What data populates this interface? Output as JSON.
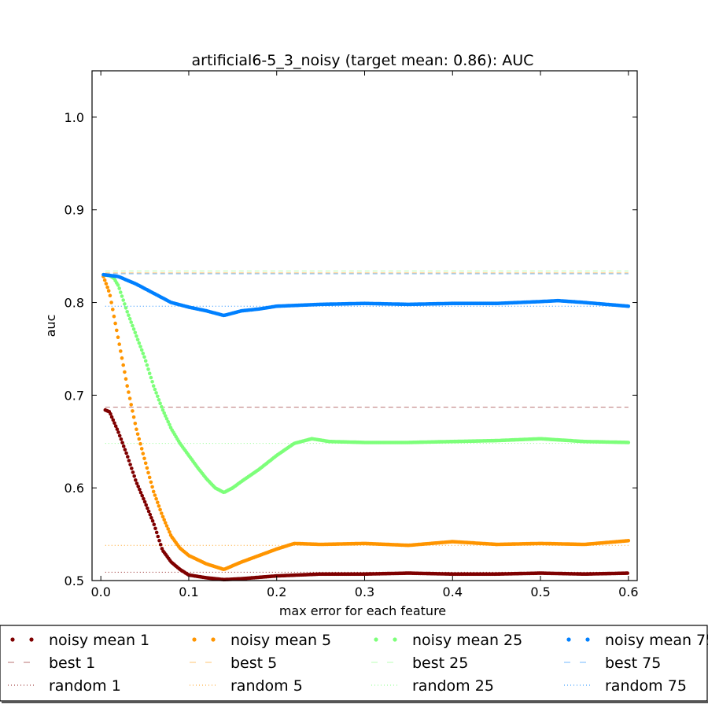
{
  "chart_data": {
    "type": "scatter",
    "title": "artificial6-5_3_noisy (target mean: 0.86): AUC",
    "xlabel": "max error for each feature",
    "ylabel": "auc",
    "xlim": [
      -0.01,
      0.61
    ],
    "ylim": [
      0.5,
      1.05
    ],
    "xticks": [
      0.0,
      0.1,
      0.2,
      0.3,
      0.4,
      0.5,
      0.6
    ],
    "xtick_labels": [
      "0.0",
      "0.1",
      "0.2",
      "0.3",
      "0.4",
      "0.5",
      "0.6"
    ],
    "yticks": [
      0.5,
      0.6,
      0.7,
      0.8,
      0.9,
      1.0
    ],
    "ytick_labels": [
      "0.5",
      "0.6",
      "0.7",
      "0.8",
      "0.9",
      "1.0"
    ],
    "grid": false,
    "legend_position": "below plot, 4 columns",
    "colors": {
      "group1": "#7f0000",
      "group5": "#ff9500",
      "group25": "#7dff7a",
      "group75": "#0080ff"
    },
    "series": [
      {
        "name": "noisy mean 1",
        "style": "dots",
        "color": "#7f0000",
        "x": [
          0.005,
          0.01,
          0.02,
          0.03,
          0.04,
          0.05,
          0.06,
          0.07,
          0.08,
          0.09,
          0.1,
          0.12,
          0.14,
          0.16,
          0.2,
          0.25,
          0.3,
          0.35,
          0.4,
          0.45,
          0.5,
          0.55,
          0.6
        ],
        "y": [
          0.684,
          0.682,
          0.66,
          0.635,
          0.607,
          0.585,
          0.562,
          0.533,
          0.52,
          0.512,
          0.506,
          0.503,
          0.501,
          0.502,
          0.505,
          0.507,
          0.507,
          0.508,
          0.507,
          0.507,
          0.508,
          0.507,
          0.508
        ]
      },
      {
        "name": "best 1",
        "style": "dashed",
        "color": "#7f0000",
        "x": [
          0.005,
          0.6
        ],
        "y": [
          0.687,
          0.687
        ]
      },
      {
        "name": "random 1",
        "style": "dotted",
        "color": "#7f0000",
        "x": [
          0.005,
          0.6
        ],
        "y": [
          0.509,
          0.509
        ]
      },
      {
        "name": "noisy mean 5",
        "style": "dots",
        "color": "#ff9500",
        "x": [
          0.003,
          0.01,
          0.015,
          0.02,
          0.025,
          0.03,
          0.04,
          0.05,
          0.06,
          0.07,
          0.08,
          0.09,
          0.1,
          0.12,
          0.14,
          0.16,
          0.18,
          0.2,
          0.22,
          0.25,
          0.3,
          0.35,
          0.4,
          0.45,
          0.5,
          0.55,
          0.6
        ],
        "y": [
          0.828,
          0.81,
          0.785,
          0.76,
          0.735,
          0.71,
          0.665,
          0.63,
          0.596,
          0.57,
          0.548,
          0.535,
          0.527,
          0.518,
          0.512,
          0.52,
          0.527,
          0.534,
          0.54,
          0.539,
          0.54,
          0.538,
          0.542,
          0.539,
          0.54,
          0.539,
          0.543
        ]
      },
      {
        "name": "best 5",
        "style": "dashed",
        "color": "#ff9500",
        "x": [
          0.005,
          0.6
        ],
        "y": [
          0.832,
          0.832
        ]
      },
      {
        "name": "random 5",
        "style": "dotted",
        "color": "#ff9500",
        "x": [
          0.005,
          0.6
        ],
        "y": [
          0.538,
          0.538
        ]
      },
      {
        "name": "noisy mean 25",
        "style": "dots",
        "color": "#7dff7a",
        "x": [
          0.003,
          0.01,
          0.015,
          0.02,
          0.03,
          0.04,
          0.05,
          0.06,
          0.07,
          0.08,
          0.09,
          0.1,
          0.11,
          0.12,
          0.13,
          0.14,
          0.15,
          0.16,
          0.18,
          0.2,
          0.22,
          0.24,
          0.26,
          0.3,
          0.35,
          0.4,
          0.45,
          0.5,
          0.55,
          0.6
        ],
        "y": [
          0.83,
          0.829,
          0.826,
          0.818,
          0.79,
          0.765,
          0.74,
          0.71,
          0.685,
          0.664,
          0.648,
          0.635,
          0.622,
          0.61,
          0.6,
          0.595,
          0.6,
          0.607,
          0.62,
          0.635,
          0.648,
          0.653,
          0.65,
          0.649,
          0.649,
          0.65,
          0.651,
          0.653,
          0.65,
          0.649
        ]
      },
      {
        "name": "best 25",
        "style": "dashed",
        "color": "#7dff7a",
        "x": [
          0.005,
          0.6
        ],
        "y": [
          0.834,
          0.834
        ]
      },
      {
        "name": "random 25",
        "style": "dotted",
        "color": "#7dff7a",
        "x": [
          0.005,
          0.6
        ],
        "y": [
          0.648,
          0.648
        ]
      },
      {
        "name": "noisy mean 75",
        "style": "dots",
        "color": "#0080ff",
        "x": [
          0.003,
          0.02,
          0.04,
          0.06,
          0.08,
          0.1,
          0.12,
          0.14,
          0.16,
          0.18,
          0.2,
          0.25,
          0.3,
          0.35,
          0.4,
          0.45,
          0.5,
          0.52,
          0.55,
          0.6
        ],
        "y": [
          0.83,
          0.828,
          0.82,
          0.81,
          0.8,
          0.795,
          0.791,
          0.786,
          0.791,
          0.793,
          0.796,
          0.798,
          0.799,
          0.798,
          0.799,
          0.799,
          0.801,
          0.802,
          0.8,
          0.796
        ]
      },
      {
        "name": "best 75",
        "style": "dashed",
        "color": "#0080ff",
        "x": [
          0.005,
          0.6
        ],
        "y": [
          0.831,
          0.831
        ]
      },
      {
        "name": "random 75",
        "style": "dotted",
        "color": "#0080ff",
        "x": [
          0.005,
          0.6
        ],
        "y": [
          0.796,
          0.796
        ]
      }
    ]
  }
}
